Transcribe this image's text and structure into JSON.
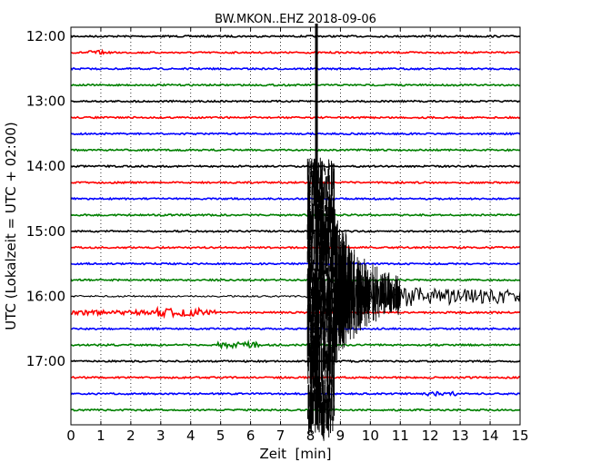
{
  "chart_data": {
    "type": "line",
    "title": "BW.MKON..EHZ 2018-09-06",
    "xlabel": "Zeit  [min]",
    "ylabel": "UTC (Lokalzeit = UTC + 02:00)",
    "xlim": [
      0,
      15
    ],
    "x_ticks": [
      "0",
      "1",
      "2",
      "3",
      "4",
      "5",
      "6",
      "7",
      "8",
      "9",
      "10",
      "11",
      "12",
      "13",
      "14",
      "15"
    ],
    "y_tick_labels": [
      "12:00",
      "13:00",
      "14:00",
      "15:00",
      "16:00",
      "17:00"
    ],
    "trace_interval_min": 15,
    "grid": "vertical dotted at each minute",
    "trace_colors": [
      "#000000",
      "#ff0000",
      "#0000ff",
      "#008000"
    ],
    "traces": [
      {
        "start": "12:00"
      },
      {
        "start": "12:15"
      },
      {
        "start": "12:30"
      },
      {
        "start": "12:45"
      },
      {
        "start": "13:00"
      },
      {
        "start": "13:15"
      },
      {
        "start": "13:30"
      },
      {
        "start": "13:45"
      },
      {
        "start": "14:00"
      },
      {
        "start": "14:15"
      },
      {
        "start": "14:30"
      },
      {
        "start": "14:45"
      },
      {
        "start": "15:00"
      },
      {
        "start": "15:15"
      },
      {
        "start": "15:30"
      },
      {
        "start": "15:45"
      },
      {
        "start": "16:00"
      },
      {
        "start": "16:15"
      },
      {
        "start": "16:30"
      },
      {
        "start": "16:45"
      },
      {
        "start": "17:00"
      },
      {
        "start": "17:15"
      },
      {
        "start": "17:30"
      },
      {
        "start": "17:45"
      }
    ],
    "events": [
      {
        "trace_start": "14:00",
        "type": "earthquake",
        "onset_min": 8.2
      },
      {
        "trace_start": "16:00",
        "type": "earthquake-coda",
        "onset_min": 7.85,
        "duration_min": 7.15
      }
    ]
  }
}
